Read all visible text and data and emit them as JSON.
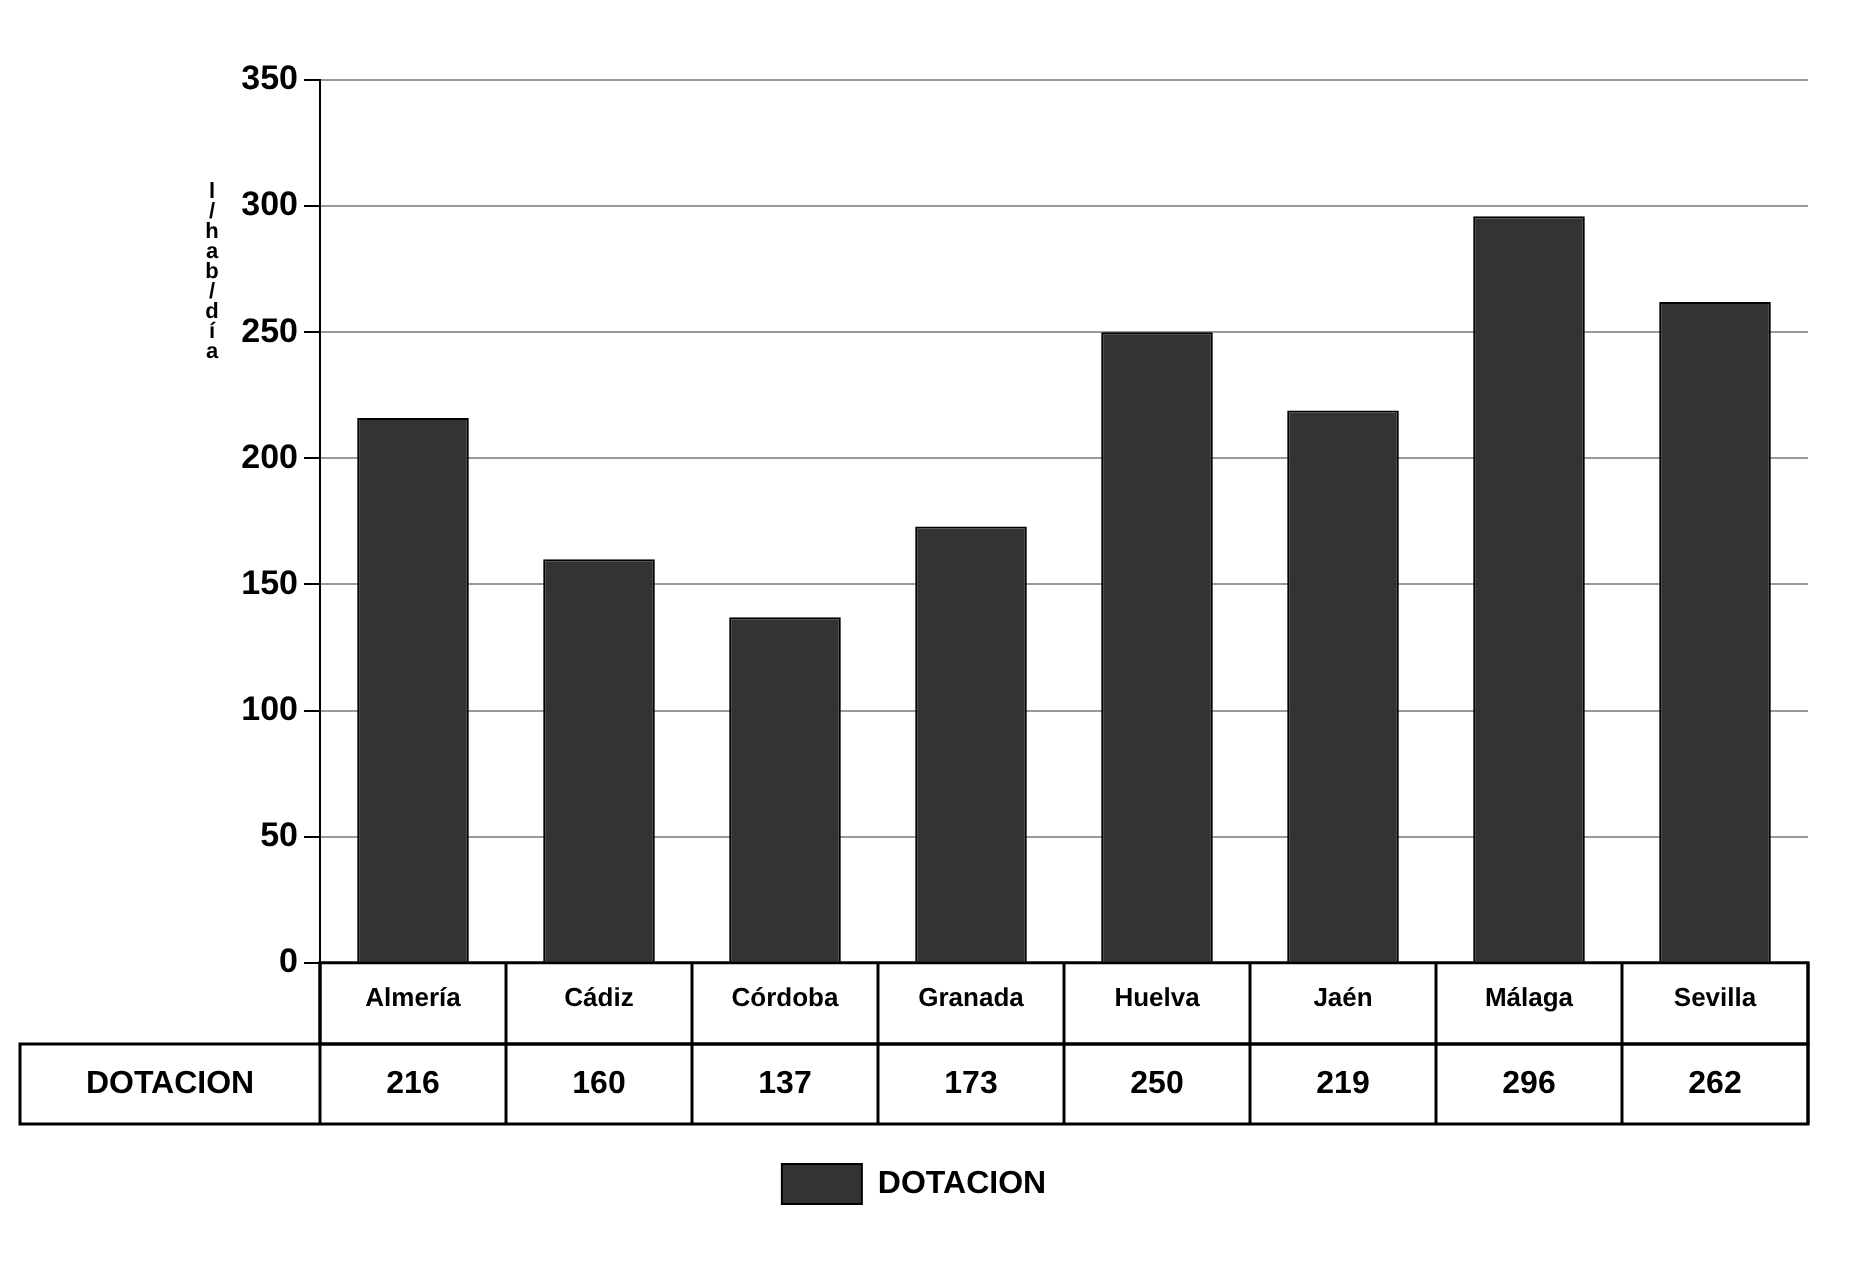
{
  "chart_data": {
    "type": "bar",
    "ylabel": "l/hab/día",
    "categories": [
      "Almería",
      "Cádiz",
      "Córdoba",
      "Granada",
      "Huelva",
      "Jaén",
      "Málaga",
      "Sevilla"
    ],
    "series": [
      {
        "name": "DOTACION",
        "color": "#333333",
        "values": [
          216,
          160,
          137,
          173,
          250,
          219,
          296,
          262
        ]
      }
    ],
    "ylim": [
      0,
      350
    ],
    "yticks": [
      0,
      50,
      100,
      150,
      200,
      250,
      300,
      350
    ],
    "grid": "y",
    "legend": "bottom",
    "data_labels": true
  }
}
